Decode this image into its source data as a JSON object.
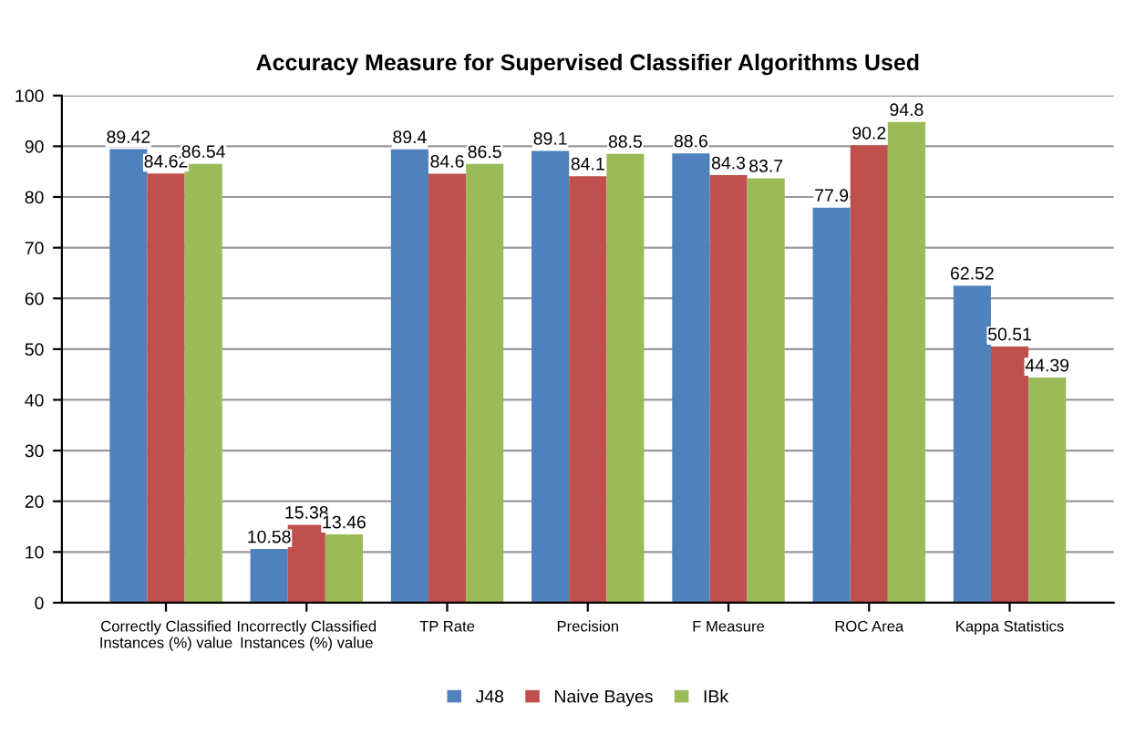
{
  "chart_data": {
    "type": "bar",
    "title": "Accuracy Measure for Supervised Classifier Algorithms Used",
    "categories": [
      "Correctly Classified\nInstances (%) value",
      "Incorrectly Classified\nInstances (%) value",
      "TP Rate",
      "Precision",
      "F Measure",
      "ROC Area",
      "Kappa Statistics"
    ],
    "series": [
      {
        "name": "J48",
        "color": "#4f81bd",
        "values": [
          89.42,
          10.58,
          89.4,
          89.1,
          88.6,
          77.9,
          62.52
        ]
      },
      {
        "name": "Naive Bayes",
        "color": "#c0504d",
        "values": [
          84.62,
          15.38,
          84.6,
          84.1,
          84.3,
          90.2,
          50.51
        ]
      },
      {
        "name": "IBk",
        "color": "#9bbb59",
        "values": [
          86.54,
          13.46,
          86.5,
          88.5,
          83.7,
          94.8,
          44.39
        ]
      }
    ],
    "ylim": [
      0,
      100
    ],
    "yticks": [
      0,
      10,
      20,
      30,
      40,
      50,
      60,
      70,
      80,
      90,
      100
    ],
    "grid": "y",
    "legend": "bottom",
    "data_labels": true
  }
}
